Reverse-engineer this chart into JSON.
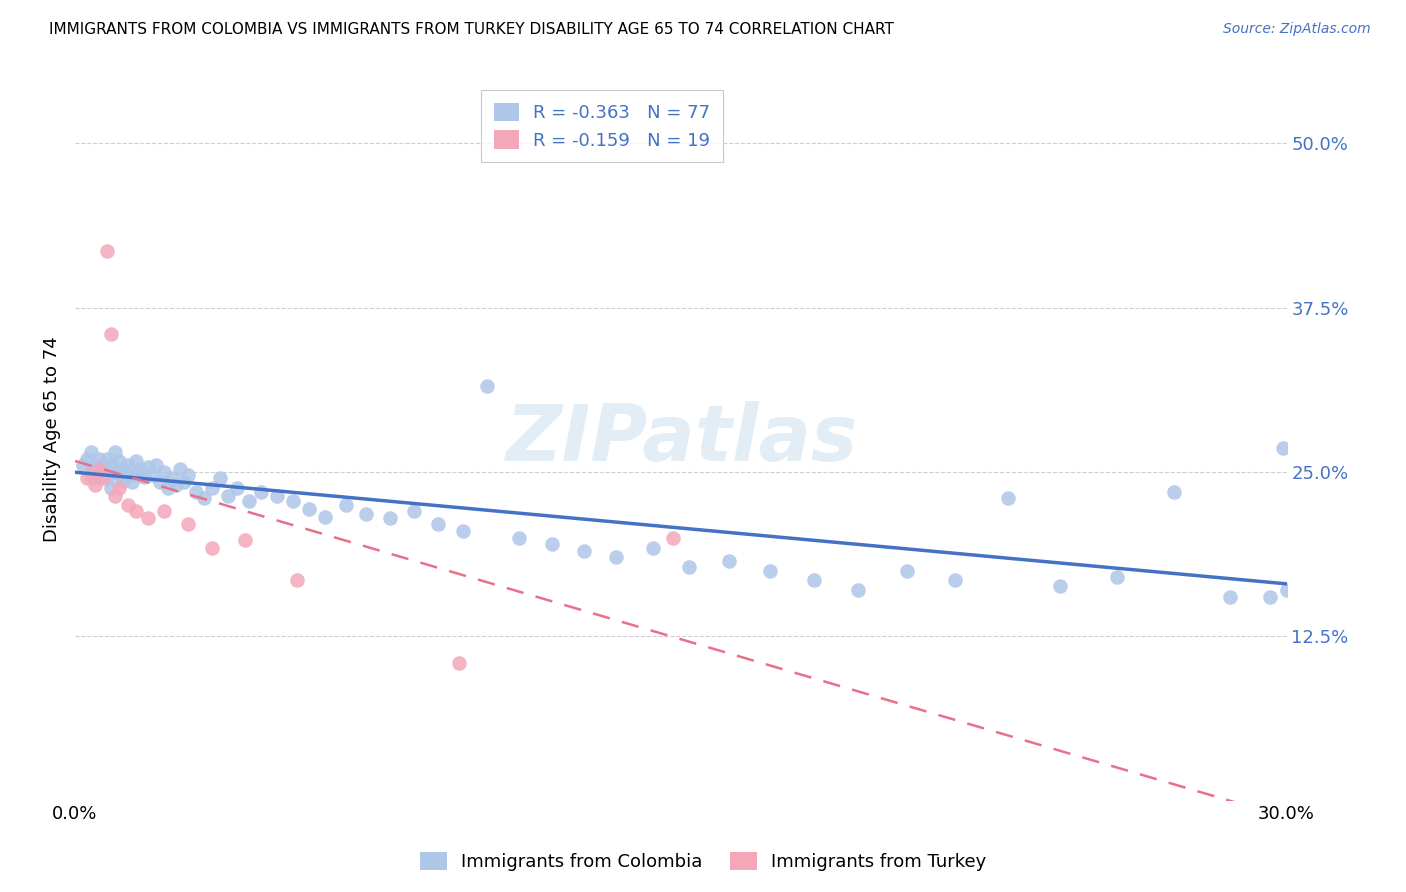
{
  "title": "IMMIGRANTS FROM COLOMBIA VS IMMIGRANTS FROM TURKEY DISABILITY AGE 65 TO 74 CORRELATION CHART",
  "source": "Source: ZipAtlas.com",
  "ylabel": "Disability Age 65 to 74",
  "xlim": [
    0.0,
    0.3
  ],
  "ylim": [
    0.0,
    0.55
  ],
  "yticks": [
    0.125,
    0.25,
    0.375,
    0.5
  ],
  "ytick_labels": [
    "12.5%",
    "25.0%",
    "37.5%",
    "50.0%"
  ],
  "xticks": [
    0.0,
    0.05,
    0.1,
    0.15,
    0.2,
    0.25,
    0.3
  ],
  "xtick_labels": [
    "0.0%",
    "",
    "",
    "",
    "",
    "",
    "30.0%"
  ],
  "colombia_R": -0.363,
  "colombia_N": 77,
  "turkey_R": -0.159,
  "turkey_N": 19,
  "colombia_color": "#aec6e8",
  "turkey_color": "#f4a7b9",
  "trend_colombia_color": "#4472c4",
  "trend_turkey_color": "#e8708a",
  "watermark": "ZIPatlas",
  "colombia_x": [
    0.002,
    0.003,
    0.004,
    0.004,
    0.005,
    0.005,
    0.006,
    0.006,
    0.007,
    0.007,
    0.008,
    0.008,
    0.009,
    0.009,
    0.01,
    0.01,
    0.011,
    0.011,
    0.012,
    0.012,
    0.013,
    0.013,
    0.014,
    0.015,
    0.015,
    0.016,
    0.017,
    0.018,
    0.019,
    0.02,
    0.021,
    0.022,
    0.023,
    0.024,
    0.025,
    0.026,
    0.027,
    0.028,
    0.03,
    0.032,
    0.034,
    0.036,
    0.038,
    0.04,
    0.043,
    0.046,
    0.05,
    0.054,
    0.058,
    0.062,
    0.067,
    0.072,
    0.078,
    0.084,
    0.09,
    0.096,
    0.102,
    0.11,
    0.118,
    0.126,
    0.134,
    0.143,
    0.152,
    0.162,
    0.172,
    0.183,
    0.194,
    0.206,
    0.218,
    0.231,
    0.244,
    0.258,
    0.272,
    0.286,
    0.296,
    0.299,
    0.3
  ],
  "colombia_y": [
    0.255,
    0.26,
    0.25,
    0.265,
    0.255,
    0.245,
    0.26,
    0.25,
    0.255,
    0.248,
    0.26,
    0.245,
    0.255,
    0.238,
    0.25,
    0.265,
    0.248,
    0.258,
    0.252,
    0.243,
    0.255,
    0.248,
    0.242,
    0.258,
    0.248,
    0.252,
    0.246,
    0.254,
    0.248,
    0.255,
    0.242,
    0.25,
    0.238,
    0.245,
    0.24,
    0.252,
    0.242,
    0.248,
    0.235,
    0.23,
    0.238,
    0.245,
    0.232,
    0.238,
    0.228,
    0.235,
    0.232,
    0.228,
    0.222,
    0.216,
    0.225,
    0.218,
    0.215,
    0.22,
    0.21,
    0.205,
    0.315,
    0.2,
    0.195,
    0.19,
    0.185,
    0.192,
    0.178,
    0.182,
    0.175,
    0.168,
    0.16,
    0.175,
    0.168,
    0.23,
    0.163,
    0.17,
    0.235,
    0.155,
    0.155,
    0.268,
    0.16
  ],
  "turkey_x": [
    0.003,
    0.004,
    0.005,
    0.006,
    0.007,
    0.008,
    0.009,
    0.01,
    0.011,
    0.013,
    0.015,
    0.018,
    0.022,
    0.028,
    0.034,
    0.042,
    0.055,
    0.095,
    0.148
  ],
  "turkey_y": [
    0.245,
    0.248,
    0.24,
    0.252,
    0.245,
    0.418,
    0.355,
    0.232,
    0.238,
    0.225,
    0.22,
    0.215,
    0.22,
    0.21,
    0.192,
    0.198,
    0.168,
    0.105,
    0.2
  ],
  "legend_entries": [
    "Immigrants from Colombia",
    "Immigrants from Turkey"
  ]
}
